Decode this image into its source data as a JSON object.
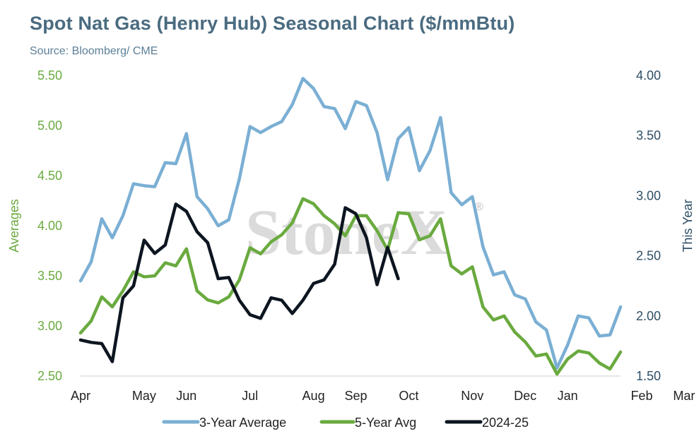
{
  "title": "Spot Nat Gas (Henry Hub) Seasonal Chart ($/mmBtu)",
  "subtitle": "Source: Bloomberg/ CME",
  "watermark": "StoneX",
  "watermark_mark": "®",
  "colors": {
    "three_year": "#7bafd4",
    "five_year": "#6aaa3f",
    "this_year": "#0d1520",
    "left_axis": "#6aaa3f",
    "right_axis": "#2f4f66"
  },
  "chart_data": {
    "type": "line",
    "x_tick_labels": [
      "Apr",
      "May",
      "Jun",
      "Jul",
      "Aug",
      "Sep",
      "Oct",
      "Nov",
      "Dec",
      "Jan",
      "Feb",
      "Mar"
    ],
    "x_tick_index": [
      0,
      6,
      10,
      16,
      22,
      26,
      31,
      37,
      42,
      46,
      53,
      57
    ],
    "left_axis": {
      "title": "Averages",
      "min": 2.5,
      "max": 5.5,
      "ticks": [
        "2.50",
        "3.00",
        "3.50",
        "4.00",
        "4.50",
        "5.00",
        "5.50"
      ]
    },
    "right_axis": {
      "title": "This Year",
      "min": 1.5,
      "max": 4.0,
      "ticks": [
        "1.50",
        "2.00",
        "2.50",
        "3.00",
        "3.50",
        "4.00"
      ]
    },
    "series": [
      {
        "name": "3-Year Average",
        "axis": "left",
        "color": "#7bafd4",
        "values": [
          3.45,
          3.64,
          4.07,
          3.88,
          4.1,
          4.42,
          4.4,
          4.39,
          4.63,
          4.62,
          4.92,
          4.29,
          4.17,
          4.0,
          4.06,
          4.47,
          4.99,
          4.93,
          4.99,
          5.04,
          5.21,
          5.47,
          5.37,
          5.19,
          5.17,
          4.97,
          5.24,
          5.2,
          4.93,
          4.46,
          4.87,
          4.98,
          4.55,
          4.75,
          5.08,
          4.33,
          4.21,
          4.29,
          3.79,
          3.51,
          3.54,
          3.31,
          3.27,
          3.04,
          2.96,
          2.58,
          2.81,
          3.1,
          3.08,
          2.9,
          2.91,
          3.19
        ]
      },
      {
        "name": "5-Year Avg",
        "axis": "left",
        "color": "#6aaa3f",
        "values": [
          2.93,
          3.05,
          3.29,
          3.19,
          3.35,
          3.54,
          3.49,
          3.5,
          3.63,
          3.6,
          3.77,
          3.35,
          3.26,
          3.23,
          3.29,
          3.46,
          3.78,
          3.72,
          3.84,
          3.91,
          4.03,
          4.27,
          4.22,
          4.1,
          4.02,
          3.9,
          4.1,
          4.1,
          3.95,
          3.76,
          4.13,
          4.12,
          3.86,
          3.9,
          4.07,
          3.6,
          3.52,
          3.59,
          3.19,
          3.06,
          3.1,
          2.94,
          2.84,
          2.7,
          2.72,
          2.52,
          2.67,
          2.75,
          2.73,
          2.63,
          2.57,
          2.74
        ]
      },
      {
        "name": "2024-25",
        "axis": "right",
        "color": "#0d1520",
        "values": [
          1.8,
          1.78,
          1.77,
          1.62,
          2.15,
          2.25,
          2.63,
          2.52,
          2.59,
          2.93,
          2.87,
          2.7,
          2.61,
          2.31,
          2.32,
          2.13,
          2.01,
          1.98,
          2.15,
          2.13,
          2.02,
          2.13,
          2.27,
          2.3,
          2.43,
          2.9,
          2.85,
          2.65,
          2.26,
          2.57,
          2.31
        ]
      }
    ],
    "legend": {
      "position": "bottom",
      "entries": [
        "3-Year Average",
        "5-Year Avg",
        "2024-25"
      ]
    },
    "grid": false
  }
}
